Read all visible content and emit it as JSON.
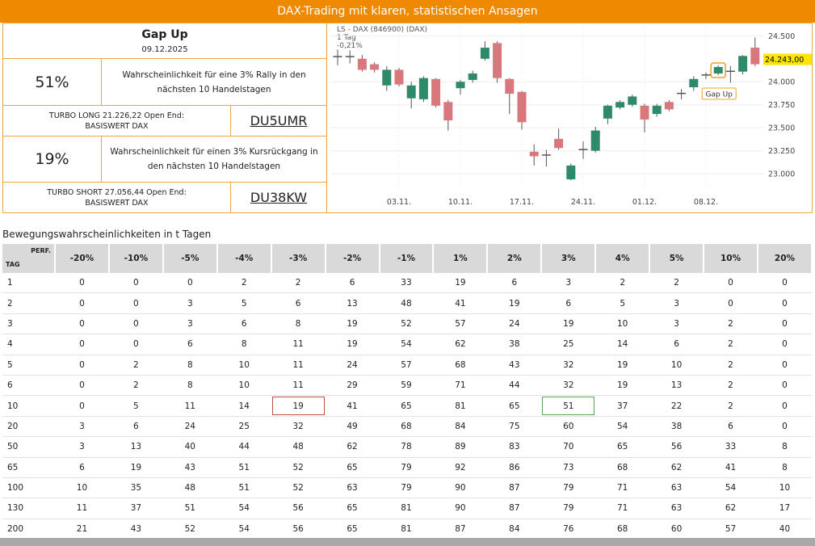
{
  "header": {
    "title": "DAX-Trading mit klaren, statistischen Ansagen"
  },
  "panel": {
    "title": "Gap Up",
    "date": "09.12.2025",
    "rally": {
      "probability": "51%",
      "text": "Wahrscheinlichkeit für eine 3% Rally in den nächsten 10 Handelstagen"
    },
    "long": {
      "line1": "TURBO LONG 21.226,22 Open End:",
      "line2": "BASISWERT DAX",
      "code": "DU5UMR"
    },
    "decline": {
      "probability": "19%",
      "text": "Wahrscheinlichkeit für einen 3% Kursrückgang in den nächsten 10 Handelstagen"
    },
    "short": {
      "line1": "TURBO SHORT 27.056,44 Open End:",
      "line2": "BASISWERT DAX",
      "code": "DU38KW"
    }
  },
  "chart_data": {
    "type": "candlestick",
    "title": "LS - DAX (846900) (DAX)",
    "subtitle": "1 Tag",
    "change": "-0,21%",
    "categories": [
      null,
      null,
      null,
      null,
      null,
      "03.11.",
      null,
      null,
      null,
      null,
      "10.11.",
      null,
      null,
      null,
      null,
      "17.11.",
      null,
      null,
      null,
      null,
      "24.11.",
      null,
      null,
      null,
      null,
      "01.12.",
      null,
      null,
      null,
      null,
      "08.12.",
      null,
      null,
      null,
      null
    ],
    "open": [
      24280,
      24270,
      24250,
      24190,
      23960,
      24130,
      23820,
      23810,
      24030,
      23780,
      23930,
      24020,
      24250,
      24420,
      24030,
      23890,
      23240,
      23210,
      23380,
      22940,
      23260,
      23250,
      23600,
      23720,
      23750,
      23740,
      23650,
      23780,
      23870,
      23940,
      24070,
      24090,
      24110,
      24110,
      24370
    ],
    "high": [
      24350,
      24340,
      24290,
      24210,
      24170,
      24150,
      24000,
      24060,
      24040,
      23800,
      24020,
      24120,
      24440,
      24440,
      24040,
      23900,
      23320,
      23260,
      23490,
      23110,
      23350,
      23510,
      23750,
      23800,
      23860,
      23760,
      23760,
      23800,
      23920,
      24060,
      24100,
      24180,
      24170,
      24290,
      24480
    ],
    "low": [
      24180,
      24200,
      24110,
      24100,
      23900,
      23950,
      23710,
      23780,
      23720,
      23470,
      23860,
      23990,
      24230,
      23990,
      23650,
      23480,
      23090,
      23080,
      23260,
      22930,
      23160,
      23230,
      23540,
      23700,
      23730,
      23450,
      23620,
      23680,
      23810,
      23900,
      24030,
      24070,
      23990,
      24080,
      24170
    ],
    "close": [
      24270,
      24280,
      24130,
      24130,
      24130,
      23970,
      23960,
      24040,
      23740,
      23580,
      24000,
      24090,
      24370,
      24040,
      23870,
      23560,
      23190,
      23200,
      23280,
      23090,
      23270,
      23470,
      23740,
      23780,
      23840,
      23590,
      23740,
      23700,
      23880,
      24030,
      24080,
      24160,
      24120,
      24280,
      24190
    ],
    "up_color": "#2e8a68",
    "down_color": "#d8787c",
    "ylim": [
      22580,
      24590
    ],
    "yticks": [
      {
        "value": 23000,
        "label": "23.000"
      },
      {
        "value": 23250,
        "label": "23.250"
      },
      {
        "value": 23500,
        "label": "23.500"
      },
      {
        "value": 23750,
        "label": "23.750"
      },
      {
        "value": 24000,
        "label": "24.000"
      },
      {
        "value": 24500,
        "label": "24.500"
      }
    ],
    "grid": true,
    "last_price": {
      "value": 24243,
      "label": "24.243,00"
    },
    "annotation": {
      "text": "Gap Up",
      "index": 31
    }
  },
  "table": {
    "title": "Bewegungswahrscheinlichkeiten in t Tagen",
    "corner_row": "TAG",
    "corner_col": "PERF.",
    "columns": [
      "-20%",
      "-10%",
      "-5%",
      "-4%",
      "-3%",
      "-2%",
      "-1%",
      "1%",
      "2%",
      "3%",
      "4%",
      "5%",
      "10%",
      "20%"
    ],
    "rows": [
      [
        1,
        0,
        0,
        0,
        2,
        2,
        6,
        33,
        19,
        6,
        3,
        2,
        2,
        0,
        0
      ],
      [
        2,
        0,
        0,
        3,
        5,
        6,
        13,
        48,
        41,
        19,
        6,
        5,
        3,
        0,
        0
      ],
      [
        3,
        0,
        0,
        3,
        6,
        8,
        19,
        52,
        57,
        24,
        19,
        10,
        3,
        2,
        0
      ],
      [
        4,
        0,
        0,
        6,
        8,
        11,
        19,
        54,
        62,
        38,
        25,
        14,
        6,
        2,
        0
      ],
      [
        5,
        0,
        2,
        8,
        10,
        11,
        24,
        57,
        68,
        43,
        32,
        19,
        10,
        2,
        0
      ],
      [
        6,
        0,
        2,
        8,
        10,
        11,
        29,
        59,
        71,
        44,
        32,
        19,
        13,
        2,
        0
      ],
      [
        10,
        0,
        5,
        11,
        14,
        19,
        41,
        65,
        81,
        65,
        51,
        37,
        22,
        2,
        0
      ],
      [
        20,
        3,
        6,
        24,
        25,
        32,
        49,
        68,
        84,
        75,
        60,
        54,
        38,
        6,
        0
      ],
      [
        50,
        3,
        13,
        40,
        44,
        48,
        62,
        78,
        89,
        83,
        70,
        65,
        56,
        33,
        8
      ],
      [
        65,
        6,
        19,
        43,
        51,
        52,
        65,
        79,
        92,
        86,
        73,
        68,
        62,
        41,
        8
      ],
      [
        100,
        10,
        35,
        48,
        51,
        52,
        63,
        79,
        90,
        87,
        79,
        71,
        63,
        54,
        10
      ],
      [
        130,
        11,
        37,
        51,
        54,
        56,
        65,
        81,
        90,
        87,
        79,
        71,
        63,
        62,
        17
      ],
      [
        200,
        21,
        43,
        52,
        54,
        56,
        65,
        81,
        87,
        84,
        76,
        68,
        60,
        57,
        40
      ]
    ]
  }
}
